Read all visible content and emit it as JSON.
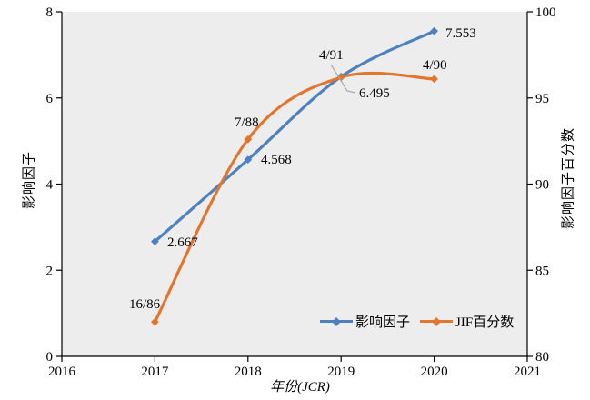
{
  "chart_data": {
    "type": "line",
    "title": "",
    "xlabel": "年份(JCR)",
    "ylabel_left": "影响因子",
    "ylabel_right": "影响因子百分数",
    "xlim": [
      2016,
      2021
    ],
    "x_ticks": [
      "2016",
      "2017",
      "2018",
      "2019",
      "2020",
      "2021"
    ],
    "ylim_left": [
      0,
      8
    ],
    "y_ticks_left": [
      "0",
      "2",
      "4",
      "6",
      "8"
    ],
    "ylim_right": [
      80,
      100
    ],
    "y_ticks_right": [
      "80",
      "85",
      "90",
      "95",
      "100"
    ],
    "grid": false,
    "legend_position": "inside-bottom-right",
    "background": "#ffffff",
    "plot_background": "#ededed",
    "axis_color": "#000000",
    "annotation_line_color": "#a8a8a8",
    "x": [
      2017,
      2018,
      2019,
      2020
    ],
    "series": [
      {
        "name": "影响因子",
        "axis": "left",
        "color": "#4e81bd",
        "marker": "diamond",
        "values": [
          2.667,
          4.568,
          6.495,
          7.553
        ],
        "point_labels": [
          "2.667",
          "4.568",
          "6.495",
          "7.553"
        ]
      },
      {
        "name": "JIF百分数",
        "axis": "right",
        "color": "#e1762f",
        "marker": "diamond",
        "values": [
          82.0,
          92.6,
          96.2,
          96.1
        ],
        "point_labels": [
          "16/86",
          "7/88",
          "4/91",
          "4/90"
        ]
      }
    ]
  }
}
